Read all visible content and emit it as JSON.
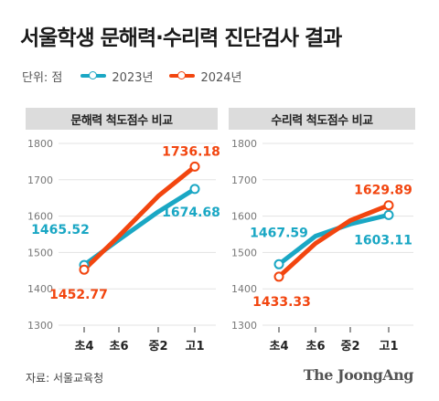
{
  "header": {
    "title": "서울학생 문해력·수리력 진단검사 결과"
  },
  "legend": {
    "unit": "단위: 점",
    "items": [
      {
        "label": "2023년",
        "color": "#1aa7c4"
      },
      {
        "label": "2024년",
        "color": "#f2450f"
      }
    ]
  },
  "footer": {
    "source": "자료: 서울교육청",
    "logo": "The JoongAng"
  },
  "colors": {
    "series_2023": "#1aa7c4",
    "series_2024": "#f2450f",
    "grid": "#e3e3e3",
    "panel_header": "#dcdcdc"
  },
  "chart_data": [
    {
      "type": "line",
      "title": "문해력 척도점수 비교",
      "categories": [
        "초4",
        "초6",
        "중2",
        "고1"
      ],
      "ylim": [
        1300,
        1800
      ],
      "yticks": [
        1300,
        1400,
        1500,
        1600,
        1700,
        1800
      ],
      "grid": true,
      "series": [
        {
          "name": "2023년",
          "values": [
            1465.52,
            1535,
            1612,
            1674.68
          ],
          "labels": [
            "1465.52",
            "",
            "",
            "1674.68"
          ]
        },
        {
          "name": "2024년",
          "values": [
            1452.77,
            1545,
            1655,
            1736.18
          ],
          "labels": [
            "1452.77",
            "",
            "",
            "1736.18"
          ]
        }
      ]
    },
    {
      "type": "line",
      "title": "수리력 척도점수 비교",
      "categories": [
        "초4",
        "초6",
        "중2",
        "고1"
      ],
      "ylim": [
        1300,
        1800
      ],
      "yticks": [
        1300,
        1400,
        1500,
        1600,
        1700,
        1800
      ],
      "grid": true,
      "series": [
        {
          "name": "2023년",
          "values": [
            1467.59,
            1545,
            1578,
            1603.11
          ],
          "labels": [
            "1467.59",
            "",
            "",
            "1603.11"
          ]
        },
        {
          "name": "2024년",
          "values": [
            1433.33,
            1525,
            1588,
            1629.89
          ],
          "labels": [
            "1433.33",
            "",
            "",
            "1629.89"
          ]
        }
      ]
    }
  ]
}
